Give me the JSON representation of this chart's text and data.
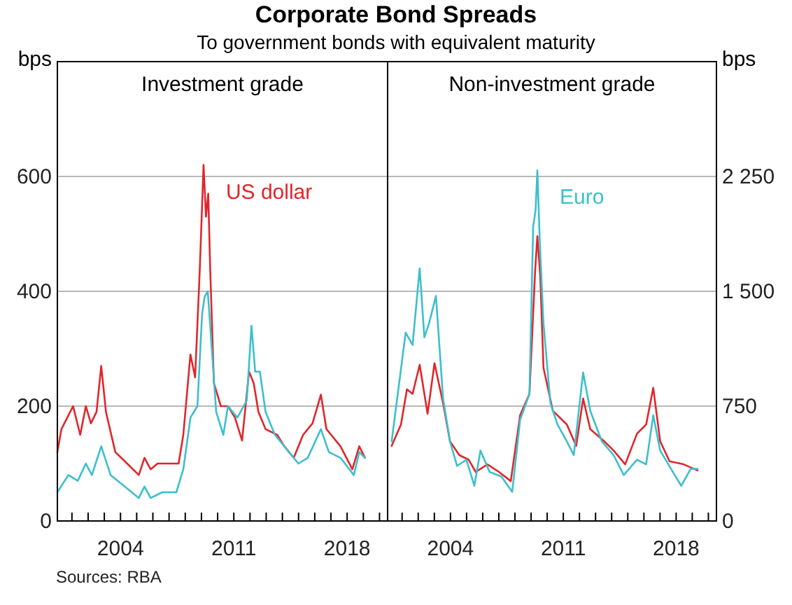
{
  "chart_data": [
    {
      "type": "line",
      "title": "Corporate Bond Spreads",
      "subtitle": "To government bonds with equivalent maturity",
      "ylabel": "bps",
      "annotations": [
        "Investment grade",
        "Sources: RBA"
      ],
      "xlim": [
        2000.1,
        2020.5
      ],
      "xticks": [
        {
          "value": 2001,
          "label": null
        },
        {
          "value": 2002,
          "label": null
        },
        {
          "value": 2003,
          "label": null
        },
        2004,
        {
          "value": 2005,
          "label": null
        },
        {
          "value": 2006,
          "label": null
        },
        {
          "value": 2007,
          "label": null
        },
        {
          "value": 2008,
          "label": null
        },
        {
          "value": 2009,
          "label": null
        },
        {
          "value": 2010,
          "label": null
        },
        2011,
        {
          "value": 2012,
          "label": null
        },
        {
          "value": 2013,
          "label": null
        },
        {
          "value": 2014,
          "label": null
        },
        {
          "value": 2015,
          "label": null
        },
        {
          "value": 2016,
          "label": null
        },
        {
          "value": 2017,
          "label": null
        },
        2018,
        {
          "value": 2019,
          "label": null
        },
        {
          "value": 2020,
          "label": null
        }
      ],
      "ylim": [
        0,
        800
      ],
      "yticks": [
        0,
        200,
        400,
        600
      ],
      "grid": "y",
      "series": [
        {
          "name": "US dollar",
          "color": "#e0262b",
          "x": [
            2000.1,
            2000.35,
            2001.07,
            2001.51,
            2001.86,
            2002.17,
            2002.52,
            2002.81,
            2003.1,
            2003.68,
            2004.41,
            2005.13,
            2005.48,
            2005.86,
            2006.29,
            2006.87,
            2007.59,
            2007.88,
            2008.32,
            2008.61,
            2008.9,
            2009.13,
            2009.28,
            2009.42,
            2009.54,
            2009.77,
            2010.2,
            2010.64,
            2011.07,
            2011.51,
            2011.94,
            2012.23,
            2012.52,
            2012.96,
            2013.68,
            2014.12,
            2014.7,
            2015.28,
            2015.86,
            2016.38,
            2016.72,
            2017.59,
            2018.32,
            2018.75,
            2019.1
          ],
          "values": [
            120,
            160,
            200,
            150,
            200,
            170,
            190,
            270,
            190,
            120,
            100,
            80,
            110,
            90,
            100,
            100,
            100,
            150,
            290,
            250,
            440,
            620,
            530,
            570,
            440,
            240,
            200,
            200,
            180,
            140,
            260,
            240,
            190,
            160,
            150,
            130,
            110,
            150,
            170,
            220,
            160,
            130,
            90,
            130,
            110
          ]
        },
        {
          "color": "#3cbfcc",
          "x": [
            2000.1,
            2000.78,
            2001.36,
            2001.86,
            2002.23,
            2002.81,
            2003.39,
            2004.26,
            2005.13,
            2005.48,
            2005.86,
            2006.58,
            2007.45,
            2007.88,
            2008.32,
            2008.75,
            2009.04,
            2009.19,
            2009.39,
            2009.54,
            2009.91,
            2010.35,
            2010.64,
            2011.22,
            2011.8,
            2012.09,
            2012.32,
            2012.61,
            2012.96,
            2013.54,
            2014.41,
            2014.99,
            2015.57,
            2016.38,
            2016.87,
            2017.59,
            2018.41,
            2018.75,
            2019.1
          ],
          "values": [
            50,
            80,
            70,
            100,
            80,
            130,
            80,
            60,
            40,
            60,
            40,
            50,
            50,
            90,
            180,
            200,
            360,
            390,
            400,
            340,
            190,
            150,
            200,
            180,
            210,
            340,
            260,
            260,
            190,
            150,
            120,
            100,
            110,
            160,
            120,
            110,
            80,
            120,
            110
          ]
        }
      ]
    },
    {
      "type": "line",
      "title": "Non-investment grade",
      "y2label": "bps",
      "xlim": [
        2000.1,
        2020.5
      ],
      "xticks": [
        {
          "value": 2001,
          "label": null
        },
        {
          "value": 2002,
          "label": null
        },
        {
          "value": 2003,
          "label": null
        },
        2004,
        {
          "value": 2005,
          "label": null
        },
        {
          "value": 2006,
          "label": null
        },
        {
          "value": 2007,
          "label": null
        },
        {
          "value": 2008,
          "label": null
        },
        {
          "value": 2009,
          "label": null
        },
        {
          "value": 2010,
          "label": null
        },
        2011,
        {
          "value": 2012,
          "label": null
        },
        {
          "value": 2013,
          "label": null
        },
        {
          "value": 2014,
          "label": null
        },
        {
          "value": 2015,
          "label": null
        },
        {
          "value": 2016,
          "label": null
        },
        {
          "value": 2017,
          "label": null
        },
        2018,
        {
          "value": 2019,
          "label": null
        },
        {
          "value": 2020,
          "label": null
        }
      ],
      "y2lim": [
        0,
        3000
      ],
      "y2ticks": [
        0,
        750,
        {
          "value": 1500,
          "label": "1 500"
        },
        {
          "value": 2250,
          "label": "2 250"
        }
      ],
      "grid": "y",
      "series": [
        {
          "color": "#e0262b",
          "axis": "y2",
          "x": [
            2000.35,
            2000.93,
            2001.3,
            2001.65,
            2002.09,
            2002.58,
            2003.01,
            2003.54,
            2003.97,
            2004.55,
            2005.13,
            2005.57,
            2006.29,
            2007.01,
            2007.74,
            2008.32,
            2008.9,
            2009.25,
            2009.39,
            2009.57,
            2009.77,
            2010.35,
            2011.22,
            2011.8,
            2012.23,
            2012.67,
            2013.54,
            2014.12,
            2014.84,
            2015.57,
            2016.14,
            2016.58,
            2017.01,
            2017.59,
            2018.46,
            2019.33
          ],
          "values": [
            490,
            630,
            860,
            830,
            1020,
            700,
            1030,
            770,
            520,
            430,
            400,
            320,
            370,
            320,
            260,
            690,
            830,
            1630,
            1860,
            1600,
            1000,
            720,
            630,
            490,
            800,
            600,
            520,
            460,
            370,
            570,
            630,
            870,
            520,
            390,
            370,
            330
          ]
        },
        {
          "name": "Euro",
          "color": "#3cbfcc",
          "axis": "y2",
          "x": [
            2000.35,
            2001.22,
            2001.65,
            2002.09,
            2002.38,
            2002.67,
            2003.1,
            2003.54,
            2003.97,
            2004.41,
            2004.99,
            2005.48,
            2005.86,
            2006.43,
            2007.16,
            2007.83,
            2008.32,
            2008.9,
            2009.13,
            2009.28,
            2009.39,
            2009.54,
            2009.77,
            2010.2,
            2010.64,
            2011.22,
            2011.65,
            2012.23,
            2012.67,
            2013.39,
            2014.12,
            2014.75,
            2015.57,
            2016.14,
            2016.58,
            2017.01,
            2017.74,
            2018.32,
            2018.9,
            2019.33
          ],
          "values": [
            520,
            1230,
            1150,
            1650,
            1200,
            1290,
            1470,
            800,
            520,
            360,
            400,
            230,
            460,
            320,
            290,
            190,
            660,
            830,
            1920,
            2030,
            2290,
            1830,
            1290,
            770,
            630,
            520,
            430,
            970,
            720,
            520,
            430,
            300,
            400,
            370,
            690,
            460,
            330,
            230,
            340,
            340
          ]
        }
      ]
    }
  ]
}
